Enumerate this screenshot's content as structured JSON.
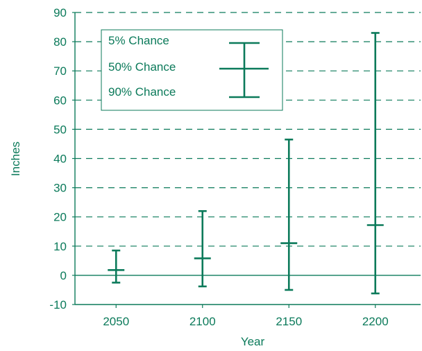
{
  "colors": {
    "accent": "#0b7a5a",
    "background": "#ffffff"
  },
  "chart_data": {
    "type": "error-bar",
    "xlabel": "Year",
    "ylabel": "Inches",
    "ylim": [
      -10,
      90
    ],
    "yticks": [
      -10,
      0,
      10,
      20,
      30,
      40,
      50,
      60,
      70,
      80,
      90
    ],
    "categories": [
      "2050",
      "2100",
      "2150",
      "2200"
    ],
    "grid": "horizontal dashed",
    "legend": {
      "placement": "top-left",
      "entries": [
        "5% Chance",
        "50% Chance",
        "90% Chance"
      ]
    },
    "points": [
      {
        "x": "2050",
        "high": 8.5,
        "mid": 1.8,
        "low": -2.5
      },
      {
        "x": "2100",
        "high": 22,
        "mid": 5.8,
        "low": -3.8
      },
      {
        "x": "2150",
        "high": 46.5,
        "mid": 11,
        "low": -5
      },
      {
        "x": "2200",
        "high": 83,
        "mid": 17.2,
        "low": -6.2
      }
    ]
  }
}
